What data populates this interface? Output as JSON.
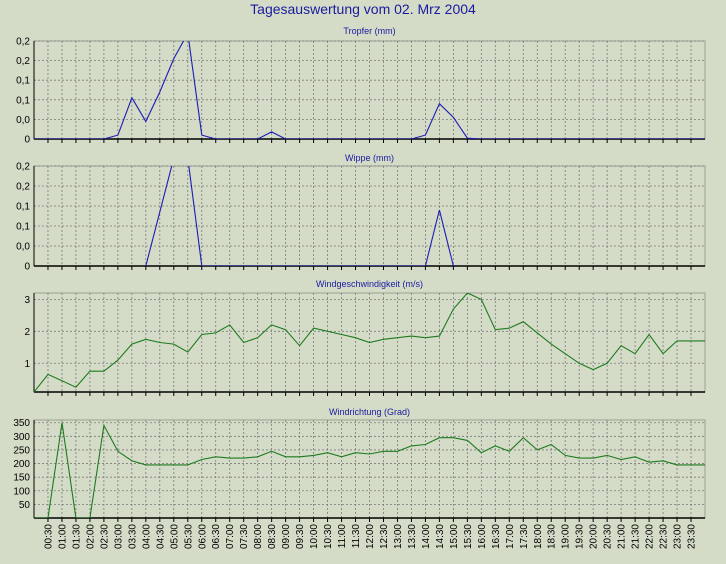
{
  "page_title": "Tagesauswertung vom 02. Mrz 2004",
  "colors": {
    "background": "#d4dcc8",
    "title": "#1a1aa0",
    "series_blue": "#1c1cb4",
    "series_green": "#1e7a1e",
    "grid": "#7a7a7a"
  },
  "x_axis": {
    "tick_labels": [
      "00:30",
      "01:00",
      "01:30",
      "02:00",
      "02:30",
      "03:00",
      "03:30",
      "04:00",
      "04:30",
      "05:00",
      "05:30",
      "06:00",
      "06:30",
      "07:00",
      "07:30",
      "08:00",
      "08:30",
      "09:00",
      "09:30",
      "10:00",
      "10:30",
      "11:00",
      "11:30",
      "12:00",
      "12:30",
      "13:00",
      "13:30",
      "14:00",
      "14:30",
      "15:00",
      "15:30",
      "16:00",
      "16:30",
      "17:00",
      "17:30",
      "18:00",
      "18:30",
      "19:00",
      "19:30",
      "20:00",
      "20:30",
      "21:00",
      "21:30",
      "22:00",
      "22:30",
      "23:00",
      "23:30"
    ]
  },
  "chart_data": [
    {
      "type": "line",
      "title": "Tropfer (mm)",
      "ylim": [
        0,
        0.25
      ],
      "y_ticks": [
        0,
        0.05,
        0.1,
        0.15,
        0.2,
        0.25
      ],
      "y_tick_labels": [
        "0",
        "0,0",
        "0,1",
        "0,1",
        "0,2",
        "0,2"
      ],
      "grid": true,
      "series": [
        {
          "color": "#1c1cb4",
          "x": [
            0,
            0.5,
            1,
            1.5,
            2,
            2.5,
            3,
            3.5,
            4,
            4.5,
            5,
            5.5,
            6,
            6.5,
            7,
            7.5,
            8,
            8.5,
            9,
            9.5,
            10,
            10.5,
            11,
            11.5,
            12,
            12.5,
            13,
            13.5,
            14,
            14.5,
            15,
            15.5,
            16,
            16.5,
            17,
            17.5,
            18,
            18.5,
            19,
            19.5,
            20,
            20.5,
            21,
            21.5,
            22,
            22.5,
            23,
            23.5,
            24
          ],
          "values": [
            0,
            0,
            0,
            0,
            0,
            0,
            0.01,
            0.105,
            0.045,
            0.12,
            0.205,
            0.27,
            0.01,
            0,
            0,
            0,
            0,
            0.018,
            0,
            0,
            0,
            0,
            0,
            0,
            0,
            0,
            0,
            0,
            0.01,
            0.09,
            0.055,
            0.002,
            0,
            0,
            0,
            0,
            0,
            0,
            0,
            0,
            0,
            0,
            0,
            0,
            0,
            0,
            0,
            0,
            0
          ]
        }
      ]
    },
    {
      "type": "line",
      "title": "Wippe (mm)",
      "ylim": [
        0,
        0.25
      ],
      "y_ticks": [
        0,
        0.05,
        0.1,
        0.15,
        0.2,
        0.25
      ],
      "y_tick_labels": [
        "0",
        "0,0",
        "0,1",
        "0,1",
        "0,2",
        "0,2"
      ],
      "grid": true,
      "series": [
        {
          "color": "#1c1cb4",
          "x": [
            4,
            5,
            5.5,
            6,
            14,
            14.5,
            15
          ],
          "values": [
            0,
            0.27,
            0.27,
            0,
            0,
            0.14,
            0
          ]
        }
      ]
    },
    {
      "type": "line",
      "title": "Windgeschwindigkeit (m/s)",
      "ylim": [
        0.1,
        3.2
      ],
      "y_ticks": [
        1,
        2,
        3
      ],
      "y_tick_labels": [
        "1",
        "2",
        "3"
      ],
      "grid": true,
      "series": [
        {
          "color": "#1e7a1e",
          "x": [
            0,
            0.5,
            1,
            1.5,
            2,
            2.5,
            3,
            3.5,
            4,
            4.5,
            5,
            5.5,
            6,
            6.5,
            7,
            7.5,
            8,
            8.5,
            9,
            9.5,
            10,
            10.5,
            11,
            11.5,
            12,
            12.5,
            13,
            13.5,
            14,
            14.5,
            15,
            15.5,
            16,
            16.5,
            17,
            17.5,
            18,
            18.5,
            19,
            19.5,
            20,
            20.5,
            21,
            21.5,
            22,
            22.5,
            23,
            23.5,
            24
          ],
          "values": [
            0.1,
            0.65,
            0.45,
            0.25,
            0.75,
            0.75,
            1.1,
            1.6,
            1.75,
            1.65,
            1.6,
            1.35,
            1.9,
            1.95,
            2.2,
            1.65,
            1.8,
            2.2,
            2.05,
            1.55,
            2.1,
            2.0,
            1.9,
            1.8,
            1.65,
            1.75,
            1.8,
            1.85,
            1.8,
            1.85,
            2.7,
            3.2,
            3.0,
            2.05,
            2.1,
            2.3,
            1.95,
            1.6,
            1.3,
            1.0,
            0.8,
            1.0,
            1.55,
            1.3,
            1.9,
            1.3,
            1.7,
            1.7,
            1.7
          ]
        }
      ]
    },
    {
      "type": "line",
      "title": "Windrichtung (Grad)",
      "ylim": [
        0,
        360
      ],
      "y_ticks": [
        50,
        100,
        150,
        200,
        250,
        300,
        350
      ],
      "y_tick_labels": [
        "50",
        "100",
        "150",
        "200",
        "250",
        "300",
        "350"
      ],
      "grid": true,
      "series": [
        {
          "color": "#1e7a1e",
          "x": [
            0,
            0.5,
            1,
            1.5,
            2,
            2.5,
            3,
            3.5,
            4,
            4.5,
            5,
            5.5,
            6,
            6.5,
            7,
            7.5,
            8,
            8.5,
            9,
            9.5,
            10,
            10.5,
            11,
            11.5,
            12,
            12.5,
            13,
            13.5,
            14,
            14.5,
            15,
            15.5,
            16,
            16.5,
            17,
            17.5,
            18,
            18.5,
            19,
            19.5,
            20,
            20.5,
            21,
            21.5,
            22,
            22.5,
            23,
            23.5,
            24
          ],
          "values": [
            0,
            0,
            350,
            0,
            0,
            340,
            245,
            210,
            195,
            195,
            195,
            195,
            215,
            225,
            220,
            220,
            225,
            245,
            225,
            225,
            230,
            240,
            225,
            240,
            235,
            245,
            245,
            265,
            270,
            295,
            295,
            285,
            240,
            265,
            245,
            295,
            250,
            270,
            230,
            220,
            220,
            230,
            215,
            225,
            205,
            210,
            195,
            195,
            195
          ]
        }
      ]
    }
  ]
}
